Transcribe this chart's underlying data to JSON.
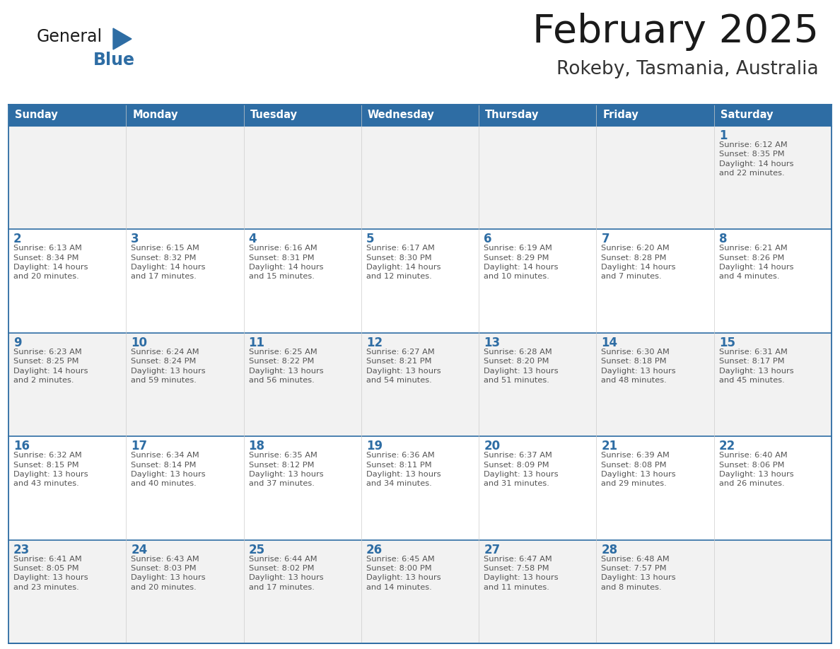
{
  "title": "February 2025",
  "subtitle": "Rokeby, Tasmania, Australia",
  "header_bg_color": "#2E6DA4",
  "header_text_color": "#FFFFFF",
  "row_bg_colors": [
    "#F2F2F2",
    "#FFFFFF",
    "#F2F2F2",
    "#FFFFFF",
    "#F2F2F2"
  ],
  "grid_line_color": "#2E6DA4",
  "day_number_color": "#2E6DA4",
  "cell_text_color": "#555555",
  "days_of_week": [
    "Sunday",
    "Monday",
    "Tuesday",
    "Wednesday",
    "Thursday",
    "Friday",
    "Saturday"
  ],
  "calendar": [
    [
      null,
      null,
      null,
      null,
      null,
      null,
      {
        "day": 1,
        "sunrise": "6:12 AM",
        "sunset": "8:35 PM",
        "daylight": "14 hours\nand 22 minutes."
      }
    ],
    [
      {
        "day": 2,
        "sunrise": "6:13 AM",
        "sunset": "8:34 PM",
        "daylight": "14 hours\nand 20 minutes."
      },
      {
        "day": 3,
        "sunrise": "6:15 AM",
        "sunset": "8:32 PM",
        "daylight": "14 hours\nand 17 minutes."
      },
      {
        "day": 4,
        "sunrise": "6:16 AM",
        "sunset": "8:31 PM",
        "daylight": "14 hours\nand 15 minutes."
      },
      {
        "day": 5,
        "sunrise": "6:17 AM",
        "sunset": "8:30 PM",
        "daylight": "14 hours\nand 12 minutes."
      },
      {
        "day": 6,
        "sunrise": "6:19 AM",
        "sunset": "8:29 PM",
        "daylight": "14 hours\nand 10 minutes."
      },
      {
        "day": 7,
        "sunrise": "6:20 AM",
        "sunset": "8:28 PM",
        "daylight": "14 hours\nand 7 minutes."
      },
      {
        "day": 8,
        "sunrise": "6:21 AM",
        "sunset": "8:26 PM",
        "daylight": "14 hours\nand 4 minutes."
      }
    ],
    [
      {
        "day": 9,
        "sunrise": "6:23 AM",
        "sunset": "8:25 PM",
        "daylight": "14 hours\nand 2 minutes."
      },
      {
        "day": 10,
        "sunrise": "6:24 AM",
        "sunset": "8:24 PM",
        "daylight": "13 hours\nand 59 minutes."
      },
      {
        "day": 11,
        "sunrise": "6:25 AM",
        "sunset": "8:22 PM",
        "daylight": "13 hours\nand 56 minutes."
      },
      {
        "day": 12,
        "sunrise": "6:27 AM",
        "sunset": "8:21 PM",
        "daylight": "13 hours\nand 54 minutes."
      },
      {
        "day": 13,
        "sunrise": "6:28 AM",
        "sunset": "8:20 PM",
        "daylight": "13 hours\nand 51 minutes."
      },
      {
        "day": 14,
        "sunrise": "6:30 AM",
        "sunset": "8:18 PM",
        "daylight": "13 hours\nand 48 minutes."
      },
      {
        "day": 15,
        "sunrise": "6:31 AM",
        "sunset": "8:17 PM",
        "daylight": "13 hours\nand 45 minutes."
      }
    ],
    [
      {
        "day": 16,
        "sunrise": "6:32 AM",
        "sunset": "8:15 PM",
        "daylight": "13 hours\nand 43 minutes."
      },
      {
        "day": 17,
        "sunrise": "6:34 AM",
        "sunset": "8:14 PM",
        "daylight": "13 hours\nand 40 minutes."
      },
      {
        "day": 18,
        "sunrise": "6:35 AM",
        "sunset": "8:12 PM",
        "daylight": "13 hours\nand 37 minutes."
      },
      {
        "day": 19,
        "sunrise": "6:36 AM",
        "sunset": "8:11 PM",
        "daylight": "13 hours\nand 34 minutes."
      },
      {
        "day": 20,
        "sunrise": "6:37 AM",
        "sunset": "8:09 PM",
        "daylight": "13 hours\nand 31 minutes."
      },
      {
        "day": 21,
        "sunrise": "6:39 AM",
        "sunset": "8:08 PM",
        "daylight": "13 hours\nand 29 minutes."
      },
      {
        "day": 22,
        "sunrise": "6:40 AM",
        "sunset": "8:06 PM",
        "daylight": "13 hours\nand 26 minutes."
      }
    ],
    [
      {
        "day": 23,
        "sunrise": "6:41 AM",
        "sunset": "8:05 PM",
        "daylight": "13 hours\nand 23 minutes."
      },
      {
        "day": 24,
        "sunrise": "6:43 AM",
        "sunset": "8:03 PM",
        "daylight": "13 hours\nand 20 minutes."
      },
      {
        "day": 25,
        "sunrise": "6:44 AM",
        "sunset": "8:02 PM",
        "daylight": "13 hours\nand 17 minutes."
      },
      {
        "day": 26,
        "sunrise": "6:45 AM",
        "sunset": "8:00 PM",
        "daylight": "13 hours\nand 14 minutes."
      },
      {
        "day": 27,
        "sunrise": "6:47 AM",
        "sunset": "7:58 PM",
        "daylight": "13 hours\nand 11 minutes."
      },
      {
        "day": 28,
        "sunrise": "6:48 AM",
        "sunset": "7:57 PM",
        "daylight": "13 hours\nand 8 minutes."
      },
      null
    ]
  ]
}
